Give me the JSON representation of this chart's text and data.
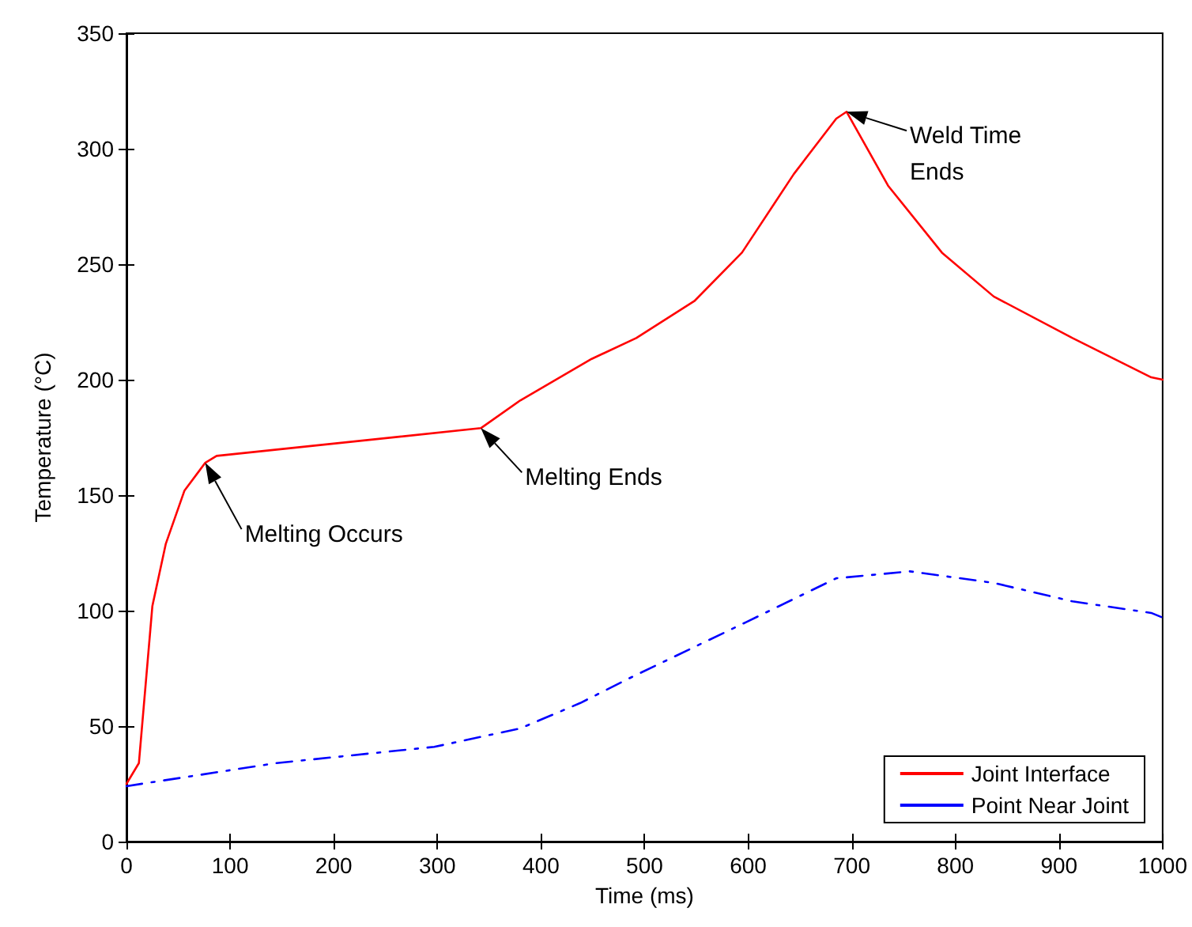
{
  "chart_data": {
    "type": "line",
    "xlabel": "Time (ms)",
    "ylabel": "Temperature (°C)",
    "xlim": [
      0,
      1000
    ],
    "xticks": [
      0,
      100,
      200,
      300,
      400,
      500,
      600,
      700,
      800,
      900,
      1000
    ],
    "ylim": [
      0,
      350
    ],
    "yticks": [
      0,
      50,
      100,
      150,
      200,
      250,
      300,
      350
    ],
    "grid": false,
    "legend": "bottom right",
    "marker": "none",
    "series": [
      {
        "name": "Joint Interface",
        "color": "#ff0000",
        "line_style": "solid",
        "x": [
          0,
          12,
          25,
          38,
          56,
          76,
          87,
          342,
          380,
          449,
          492,
          548,
          594,
          644,
          685,
          695,
          735,
          787,
          837,
          913,
          989,
          1000
        ],
        "values": [
          25,
          34,
          102,
          129,
          152,
          164,
          167,
          179,
          191,
          209,
          218,
          234,
          255,
          289,
          313,
          316,
          284,
          255,
          236,
          218,
          201,
          200
        ]
      },
      {
        "name": "Point Near Joint",
        "color": "#0000ff",
        "line_style": "dashed",
        "x": [
          0,
          145,
          297,
          380,
          438,
          482,
          598,
          685,
          756,
          837,
          913,
          989,
          1000
        ],
        "values": [
          24,
          34,
          41,
          49,
          60,
          70,
          95,
          114,
          117,
          112,
          104,
          99,
          97
        ]
      }
    ],
    "annotations": [
      {
        "text": "Melting Occurs",
        "x": 76,
        "y": 164
      },
      {
        "text": "Melting Ends",
        "x": 342,
        "y": 179
      },
      {
        "text": "Weld Time\nEnds",
        "x": 695,
        "y": 316
      }
    ]
  }
}
